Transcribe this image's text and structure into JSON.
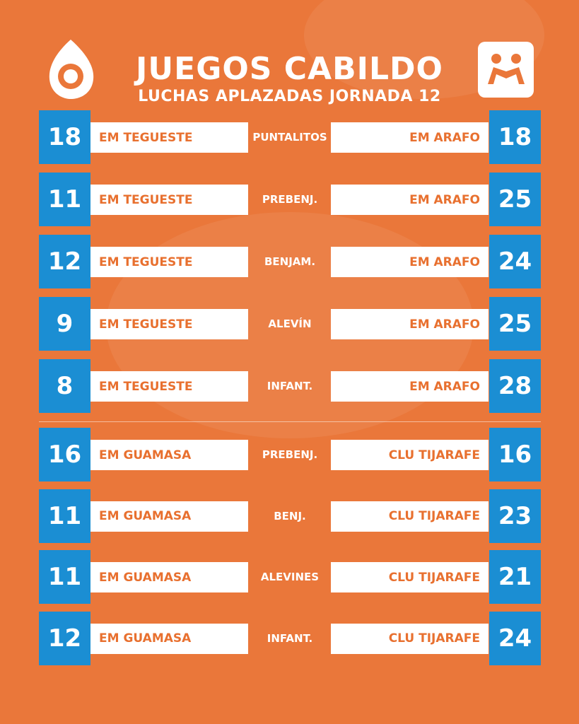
{
  "header": {
    "title": "JUEGOS CABILDO",
    "subtitle": "LUCHAS APLAZADAS JORNADA 12"
  },
  "groups": [
    {
      "matches": [
        {
          "home_score": 18,
          "home": "EM TEGUESTE",
          "category": "PUNTALITOS",
          "away": "EM ARAFO",
          "away_score": 18
        },
        {
          "home_score": 11,
          "home": "EM TEGUESTE",
          "category": "PREBENJ.",
          "away": "EM ARAFO",
          "away_score": 25
        },
        {
          "home_score": 12,
          "home": "EM TEGUESTE",
          "category": "BENJAM.",
          "away": "EM ARAFO",
          "away_score": 24
        },
        {
          "home_score": 9,
          "home": "EM TEGUESTE",
          "category": "ALEVÍN",
          "away": "EM ARAFO",
          "away_score": 25
        },
        {
          "home_score": 8,
          "home": "EM TEGUESTE",
          "category": "INFANT.",
          "away": "EM ARAFO",
          "away_score": 28
        }
      ]
    },
    {
      "matches": [
        {
          "home_score": 16,
          "home": "EM GUAMASA",
          "category": "PREBENJ.",
          "away": "CLU TIJARAFE",
          "away_score": 16
        },
        {
          "home_score": 11,
          "home": "EM GUAMASA",
          "category": "BENJ.",
          "away": "CLU TIJARAFE",
          "away_score": 23
        },
        {
          "home_score": 11,
          "home": "EM GUAMASA",
          "category": "ALEVINES",
          "away": "CLU TIJARAFE",
          "away_score": 21
        },
        {
          "home_score": 12,
          "home": "EM GUAMASA",
          "category": "INFANT.",
          "away": "CLU TIJARAFE",
          "away_score": 24
        }
      ]
    }
  ]
}
